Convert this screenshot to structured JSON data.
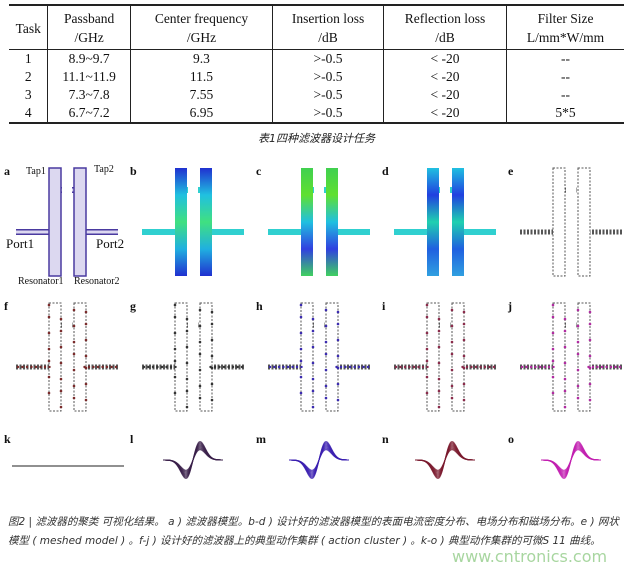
{
  "table": {
    "headers": [
      [
        "Task",
        ""
      ],
      [
        "Passband",
        "/GHz"
      ],
      [
        "Center frequency",
        "/GHz"
      ],
      [
        "Insertion loss",
        "/dB"
      ],
      [
        "Reflection loss",
        "/dB"
      ],
      [
        "Filter Size",
        "L/mm*W/mm"
      ]
    ],
    "rows": [
      [
        "1",
        "8.9~9.7",
        "9.3",
        ">-0.5",
        "< -20",
        "--"
      ],
      [
        "2",
        "11.1~11.9",
        "11.5",
        ">-0.5",
        "< -20",
        "--"
      ],
      [
        "3",
        "7.3~7.8",
        "7.55",
        ">-0.5",
        "< -20",
        "--"
      ],
      [
        "4",
        "6.7~7.2",
        "6.95",
        ">-0.5",
        "< -20",
        "5*5"
      ]
    ],
    "caption": "表1四种滤波器设计任务"
  },
  "figure": {
    "panels": [
      "a",
      "b",
      "c",
      "d",
      "e",
      "f",
      "g",
      "h",
      "i",
      "j",
      "k",
      "l",
      "m",
      "n",
      "o"
    ],
    "annotations": {
      "tap1": "Tap1",
      "tap2": "Tap2",
      "port1": "Port1",
      "port2": "Port2",
      "resonator1": "Resonator1",
      "resonator2": "Resonator2"
    },
    "curve_colors": {
      "l": "#3a1f4a",
      "m": "#3b1fb0",
      "n": "#7a1a2e",
      "o": "#c21fb0"
    },
    "caption": "图2 | 滤波器的聚类 可视化结果。 a ) 滤波器模型。b-d ) 设计好的滤波器模型的表面电流密度分布、电场分布和磁场分布。e ) 网状模型 ( meshed model ) 。f-j ) 设计好的滤波器上的典型动作集群 ( action cluster ) 。k-o ) 典型动作集群的可微S 11 曲线。"
  },
  "watermark": "www.cntronics.com"
}
